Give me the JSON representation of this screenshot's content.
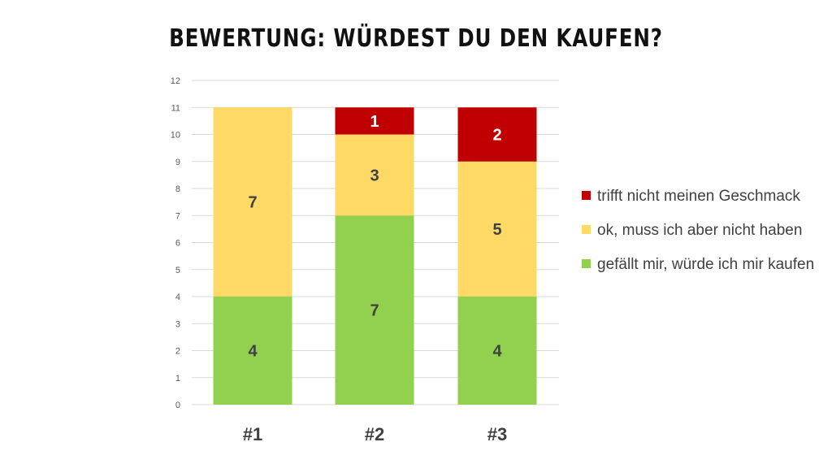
{
  "chart_data": {
    "type": "bar",
    "stacked": true,
    "title": "BEWERTUNG: WÜRDEST DU DEN KAUFEN?",
    "categories": [
      "#1",
      "#2",
      "#3"
    ],
    "series": [
      {
        "name": "gefällt mir, würde ich mir kaufen",
        "values": [
          4,
          7,
          4
        ],
        "color": "#92D050"
      },
      {
        "name": "ok, muss ich aber nicht haben",
        "values": [
          7,
          3,
          5
        ],
        "color": "#FFD966"
      },
      {
        "name": "trifft nicht meinen Geschmack",
        "values": [
          0,
          1,
          2
        ],
        "color": "#C00000"
      }
    ],
    "data_label_colors": [
      "#404040",
      "#404040",
      "#ffffff"
    ],
    "ylim": [
      0,
      12
    ],
    "yticks": [
      0,
      1,
      2,
      3,
      4,
      5,
      6,
      7,
      8,
      9,
      10,
      11,
      12
    ],
    "grid": true,
    "legend_position": "right"
  }
}
